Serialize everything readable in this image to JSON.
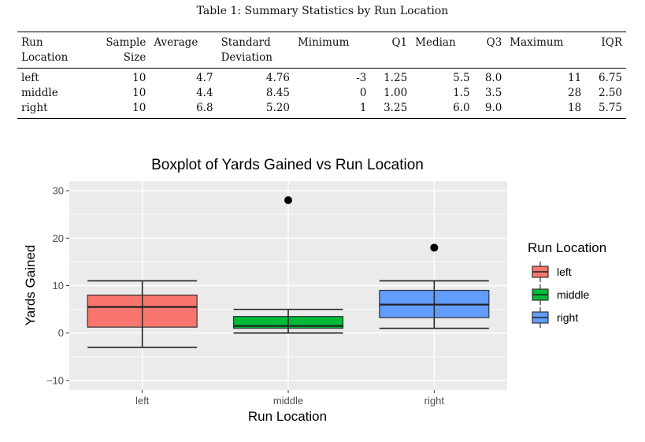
{
  "caption": "Table 1: Summary Statistics by Run Location",
  "table": {
    "headers": [
      [
        "Run",
        "Location"
      ],
      [
        "Sample",
        "Size"
      ],
      [
        "Average"
      ],
      [
        "Standard",
        "Deviation"
      ],
      [
        "Minimum"
      ],
      [
        "Q1"
      ],
      [
        "Median"
      ],
      [
        "Q3"
      ],
      [
        "Maximum"
      ],
      [
        "IQR"
      ]
    ],
    "rows": [
      [
        "left",
        "10",
        "4.7",
        "4.76",
        "-3",
        "1.25",
        "5.5",
        "8.0",
        "11",
        "6.75"
      ],
      [
        "middle",
        "10",
        "4.4",
        "8.45",
        "0",
        "1.00",
        "1.5",
        "3.5",
        "28",
        "2.50"
      ],
      [
        "right",
        "10",
        "6.8",
        "5.20",
        "1",
        "3.25",
        "6.0",
        "9.0",
        "18",
        "5.75"
      ]
    ]
  },
  "chart_data": {
    "type": "boxplot",
    "title": "Boxplot of Yards Gained vs Run Location",
    "xlabel": "Run Location",
    "ylabel": "Yards Gained",
    "ylim": [
      -12,
      32
    ],
    "yticks": [
      -10,
      0,
      10,
      20,
      30
    ],
    "grid": true,
    "legend_title": "Run Location",
    "legend_position": "right",
    "categories": [
      "left",
      "middle",
      "right"
    ],
    "boxes": [
      {
        "name": "left",
        "whisker_low": -3,
        "q1": 1.25,
        "median": 5.5,
        "q3": 8.0,
        "whisker_high": 11,
        "outliers": [],
        "color": "#F8766D"
      },
      {
        "name": "middle",
        "whisker_low": 0,
        "q1": 1.0,
        "median": 1.5,
        "q3": 3.5,
        "whisker_high": 5,
        "outliers": [
          28
        ],
        "color": "#00BA38"
      },
      {
        "name": "right",
        "whisker_low": 1,
        "q1": 3.25,
        "median": 6.0,
        "q3": 9.0,
        "whisker_high": 11,
        "outliers": [
          18
        ],
        "color": "#619CFF"
      }
    ]
  }
}
